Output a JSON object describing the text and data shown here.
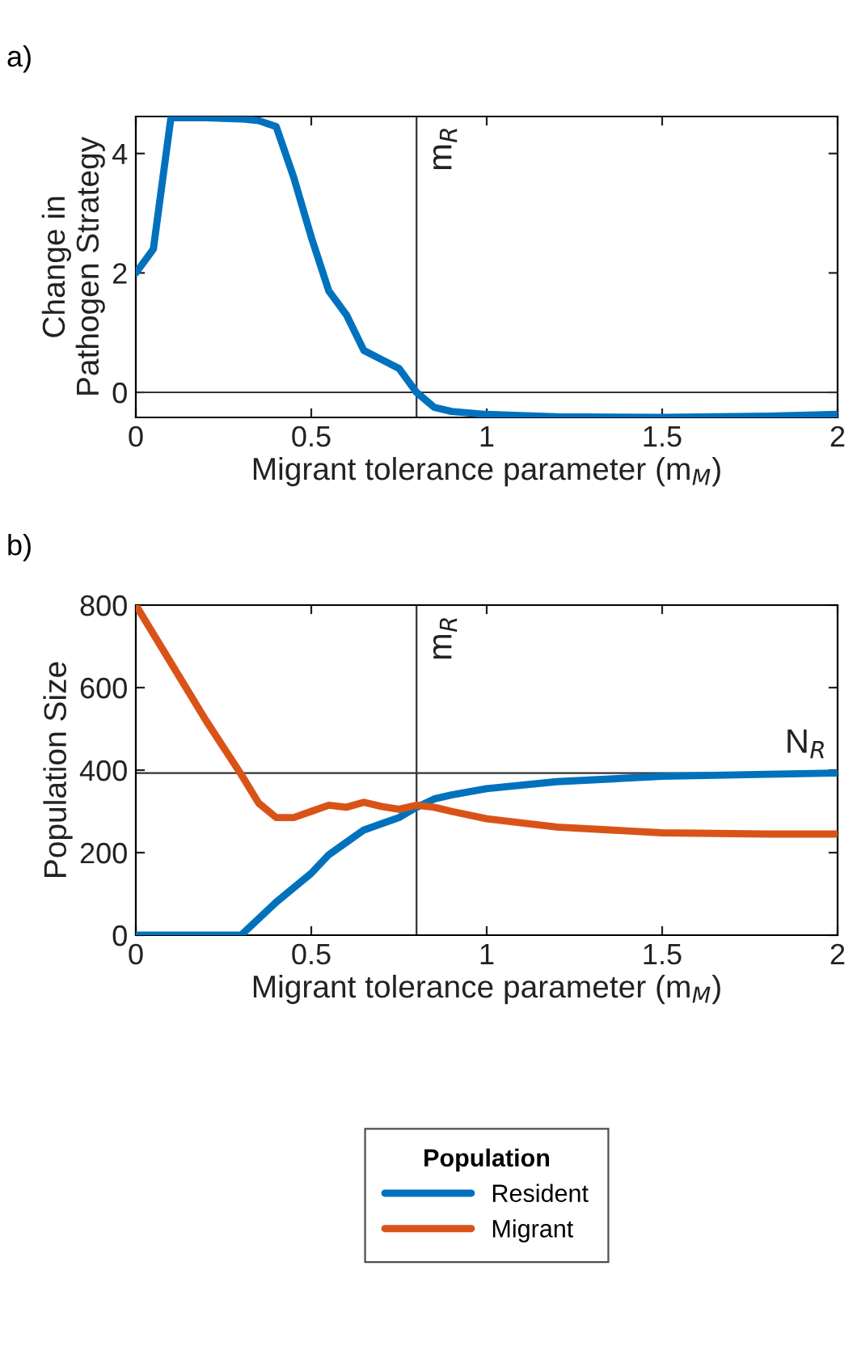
{
  "chart_data": [
    {
      "type": "line",
      "xlabel": "Migrant tolerance parameter (m$_{M}$)",
      "ylabel": "Change in\nPathogen Strategy",
      "annotations": [
        "a)"
      ],
      "xlim": [
        0,
        2
      ],
      "xticks": [
        0,
        0.5,
        1,
        1.5,
        2
      ],
      "ylim": [
        -0.42,
        4.62
      ],
      "yticks": [
        0,
        2,
        4
      ],
      "grid": false,
      "legend": false,
      "ref_lines": [
        {
          "axis": "x",
          "value": 0.8,
          "label": "m$_{R}$",
          "color": "#333333"
        },
        {
          "axis": "y",
          "value": 0,
          "label": null,
          "color": "#333333"
        }
      ],
      "series": [
        {
          "color": "#0072bd",
          "x": [
            0,
            0.05,
            0.1,
            0.2,
            0.3,
            0.35,
            0.4,
            0.45,
            0.5,
            0.55,
            0.6,
            0.65,
            0.7,
            0.75,
            0.8,
            0.85,
            0.9,
            1.0,
            1.2,
            1.5,
            1.8,
            2.0
          ],
          "values": [
            2.0,
            2.4,
            4.6,
            4.6,
            4.58,
            4.55,
            4.45,
            3.6,
            2.6,
            1.7,
            1.3,
            0.7,
            0.55,
            0.4,
            0.0,
            -0.25,
            -0.32,
            -0.37,
            -0.41,
            -0.42,
            -0.4,
            -0.37
          ]
        }
      ]
    },
    {
      "type": "line",
      "xlabel": "Migrant tolerance parameter (m$_{M}$)",
      "ylabel": "Population Size",
      "annotations": [
        "b)"
      ],
      "xlim": [
        0,
        2
      ],
      "xticks": [
        0,
        0.5,
        1,
        1.5,
        2
      ],
      "ylim": [
        0,
        800
      ],
      "yticks": [
        0,
        200,
        400,
        600,
        800
      ],
      "grid": false,
      "legend": "bottom",
      "legend_title": "Population",
      "ref_lines": [
        {
          "axis": "x",
          "value": 0.8,
          "label": "m$_{R}$",
          "color": "#333333"
        },
        {
          "axis": "y",
          "value": 393,
          "label": "N$_{R}$",
          "color": "#333333"
        }
      ],
      "series": [
        {
          "name": "Resident",
          "color": "#0072bd",
          "x": [
            0,
            0.1,
            0.2,
            0.3,
            0.4,
            0.5,
            0.55,
            0.6,
            0.65,
            0.7,
            0.75,
            0.8,
            0.85,
            0.9,
            1.0,
            1.2,
            1.5,
            1.8,
            2.0
          ],
          "values": [
            0,
            0,
            0,
            0,
            80,
            150,
            195,
            225,
            255,
            270,
            285,
            310,
            330,
            340,
            355,
            372,
            385,
            390,
            393
          ]
        },
        {
          "name": "Migrant",
          "color": "#d95319",
          "x": [
            0,
            0.1,
            0.2,
            0.3,
            0.35,
            0.4,
            0.45,
            0.5,
            0.55,
            0.6,
            0.65,
            0.7,
            0.75,
            0.8,
            0.85,
            0.9,
            1.0,
            1.2,
            1.5,
            1.8,
            2.0
          ],
          "values": [
            800,
            660,
            520,
            390,
            320,
            285,
            285,
            300,
            315,
            310,
            322,
            312,
            305,
            315,
            310,
            300,
            282,
            262,
            248,
            245,
            245
          ]
        }
      ]
    }
  ]
}
